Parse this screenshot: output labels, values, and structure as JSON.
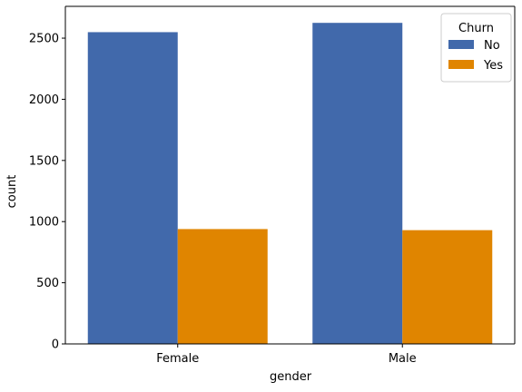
{
  "chart_data": {
    "type": "bar",
    "title": "",
    "xlabel": "gender",
    "ylabel": "count",
    "categories": [
      "Female",
      "Male"
    ],
    "series": [
      {
        "name": "No",
        "values": [
          2549,
          2625
        ],
        "color": "#4169ab"
      },
      {
        "name": "Yes",
        "values": [
          939,
          930
        ],
        "color": "#e08500"
      }
    ],
    "ylim": [
      0,
      2760
    ],
    "yticks": [
      0,
      500,
      1000,
      1500,
      2000,
      2500
    ],
    "legend": {
      "title": "Churn",
      "placement": "top-right"
    },
    "grid": false
  }
}
